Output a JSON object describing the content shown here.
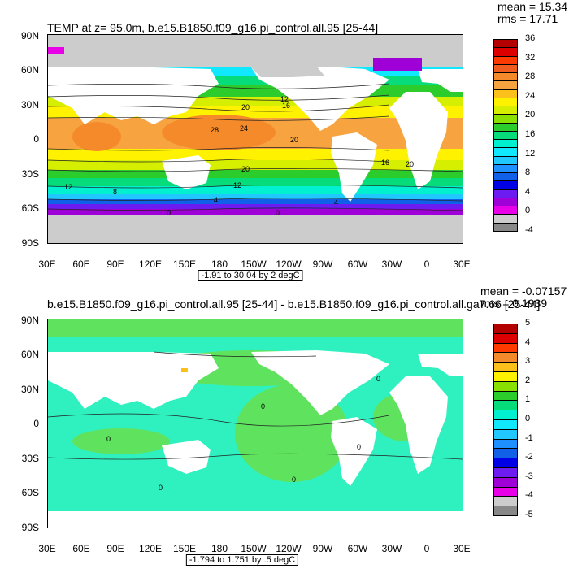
{
  "panels": [
    {
      "title": "TEMP at z=  95.0m, b.e15.B1850.f09_g16.pi_control.all.95 [25-44]",
      "stats": {
        "mean": "mean = 15.34",
        "rms": "rms = 17.71"
      },
      "range": "-1.91 to 30.04 by 2 degC",
      "colorbar": {
        "labels": [
          "36",
          "32",
          "28",
          "24",
          "20",
          "16",
          "12",
          "8",
          "4",
          "0",
          "-4"
        ],
        "colors": [
          "#b30000",
          "#dd0000",
          "#ff3a00",
          "#f05b1e",
          "#f58a2a",
          "#f7a440",
          "#fcc01a",
          "#fff200",
          "#d6ef00",
          "#8ae000",
          "#2ccc2c",
          "#06dd7a",
          "#00f0d0",
          "#10e8ff",
          "#20c8ff",
          "#1e90ff",
          "#1060e8",
          "#0000e6",
          "#6c1cf0",
          "#a000d8",
          "#e800e8",
          "#cccccc",
          "#888888"
        ]
      },
      "contour_labels": [
        "12",
        "20",
        "16",
        "24",
        "20",
        "20",
        "28",
        "12",
        "8",
        "12",
        "0",
        "0",
        "4",
        "16",
        "20",
        "4"
      ]
    },
    {
      "title": "b.e15.B1850.f09_g16.pi_control.all.95 [25-44] - b.e15.B1850.f09_g16.pi_control.all.ga7.66 [25-44]",
      "stats": {
        "mean": "mean = -0.07157",
        "rms": "rms = 0.1939"
      },
      "range": "-1.794 to 1.751 by .5 degC",
      "colorbar": {
        "labels": [
          "5",
          "4",
          "3",
          "2",
          "1",
          "0",
          "-1",
          "-2",
          "-3",
          "-4",
          "-5"
        ],
        "colors": [
          "#b30000",
          "#dd0000",
          "#ff3a00",
          "#f58a2a",
          "#fcc01a",
          "#fff200",
          "#8ae000",
          "#2ccc2c",
          "#06dd7a",
          "#00f0d0",
          "#10e8ff",
          "#20c8ff",
          "#1e90ff",
          "#1060e8",
          "#0000e6",
          "#6c1cf0",
          "#a000d8",
          "#e800e8",
          "#cccccc",
          "#888888"
        ]
      },
      "contour_labels": [
        "0",
        "0",
        "0",
        "0",
        "0",
        "0"
      ]
    }
  ],
  "axes": {
    "lat_ticks": [
      "90N",
      "60N",
      "30N",
      "0",
      "30S",
      "60S",
      "90S"
    ],
    "lon_ticks": [
      "30E",
      "60E",
      "90E",
      "120E",
      "150E",
      "180",
      "150W",
      "120W",
      "90W",
      "60W",
      "30W",
      "0",
      "30E"
    ]
  },
  "map_colors": {
    "land": "#ffffff",
    "missing": "#cccccc",
    "diff_ocean": "#2ff0bf",
    "diff_pos": "#5fe35f"
  }
}
